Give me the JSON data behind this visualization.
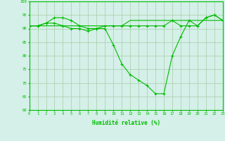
{
  "x": [
    0,
    1,
    2,
    3,
    4,
    5,
    6,
    7,
    8,
    9,
    10,
    11,
    12,
    13,
    14,
    15,
    16,
    17,
    18,
    19,
    20,
    21,
    22,
    23
  ],
  "line1": [
    91,
    91,
    92,
    94,
    94,
    93,
    91,
    90,
    90,
    91,
    91,
    91,
    91,
    91,
    91,
    91,
    91,
    93,
    91,
    91,
    91,
    94,
    95,
    93
  ],
  "line2": [
    91,
    91,
    92,
    92,
    91,
    90,
    90,
    89,
    90,
    90,
    84,
    77,
    73,
    71,
    69,
    66,
    66,
    80,
    87,
    93,
    91,
    94,
    95,
    93
  ],
  "line3": [
    91,
    91,
    91,
    91,
    91,
    91,
    91,
    91,
    91,
    91,
    91,
    91,
    93,
    93,
    93,
    93,
    93,
    93,
    93,
    93,
    93,
    93,
    93,
    93
  ],
  "xlabel": "Humidité relative (%)",
  "ylim": [
    60,
    100
  ],
  "xlim": [
    0,
    23
  ],
  "yticks": [
    60,
    65,
    70,
    75,
    80,
    85,
    90,
    95,
    100
  ],
  "xticks": [
    0,
    1,
    2,
    3,
    4,
    5,
    6,
    7,
    8,
    9,
    10,
    11,
    12,
    13,
    14,
    15,
    16,
    17,
    18,
    19,
    20,
    21,
    22,
    23
  ],
  "line_color": "#00bb00",
  "bg_color": "#d4f0e8",
  "grid_color": "#aaccaa",
  "marker": "+",
  "markersize": 3,
  "linewidth": 0.8
}
